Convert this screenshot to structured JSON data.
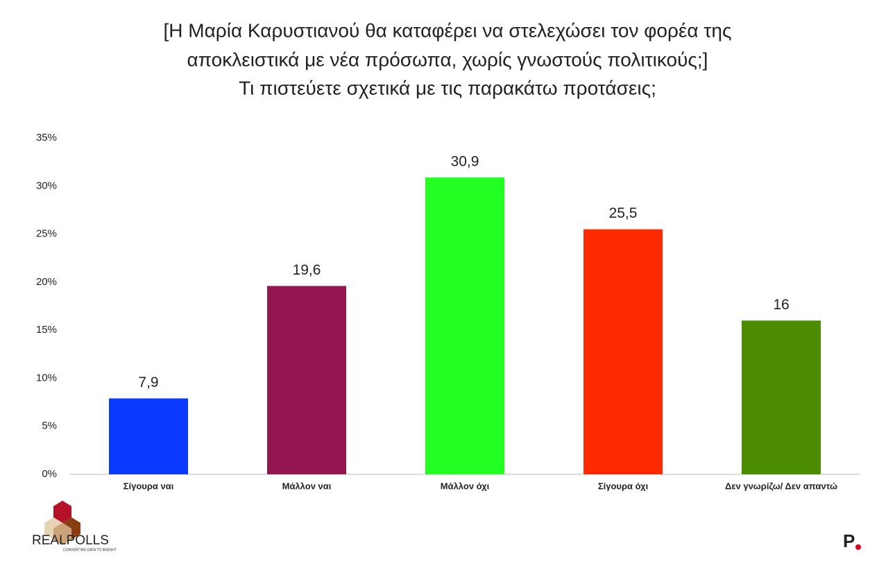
{
  "chart_data": {
    "type": "bar",
    "title": [
      "[Η Μαρία Καρυστιανού θα καταφέρει να στελεχώσει τον φορέα της",
      "αποκλειστικά με νέα πρόσωπα, χωρίς γνωστούς πολιτικούς;]",
      "Τι πιστεύετε σχετικά με τις παρακάτω προτάσεις;"
    ],
    "categories": [
      "Σίγουρα ναι",
      "Μάλλον ναι",
      "Μάλλον όχι",
      "Σίγουρα όχι",
      "Δεν γνωρίζω/ Δεν απαντώ"
    ],
    "values": [
      7.9,
      19.6,
      30.9,
      25.5,
      16
    ],
    "value_labels": [
      "7,9",
      "19,6",
      "30,9",
      "25,5",
      "16"
    ],
    "colors": [
      "#0a3aff",
      "#931650",
      "#22ff22",
      "#ff2a00",
      "#4b8c00"
    ],
    "ylim": [
      0,
      35
    ],
    "yticks": [
      {
        "value": 0,
        "label": "0%"
      },
      {
        "value": 5,
        "label": "5%"
      },
      {
        "value": 10,
        "label": "10%"
      },
      {
        "value": 15,
        "label": "15%"
      },
      {
        "value": 20,
        "label": "20%"
      },
      {
        "value": 25,
        "label": "25%"
      },
      {
        "value": 30,
        "label": "30%"
      },
      {
        "value": 35,
        "label": "35%"
      }
    ],
    "grid": false
  },
  "brand": "REALPOLLS",
  "brand_tagline": "CONVERTING DATA TO INSIGHT",
  "publisher_mark": "P"
}
